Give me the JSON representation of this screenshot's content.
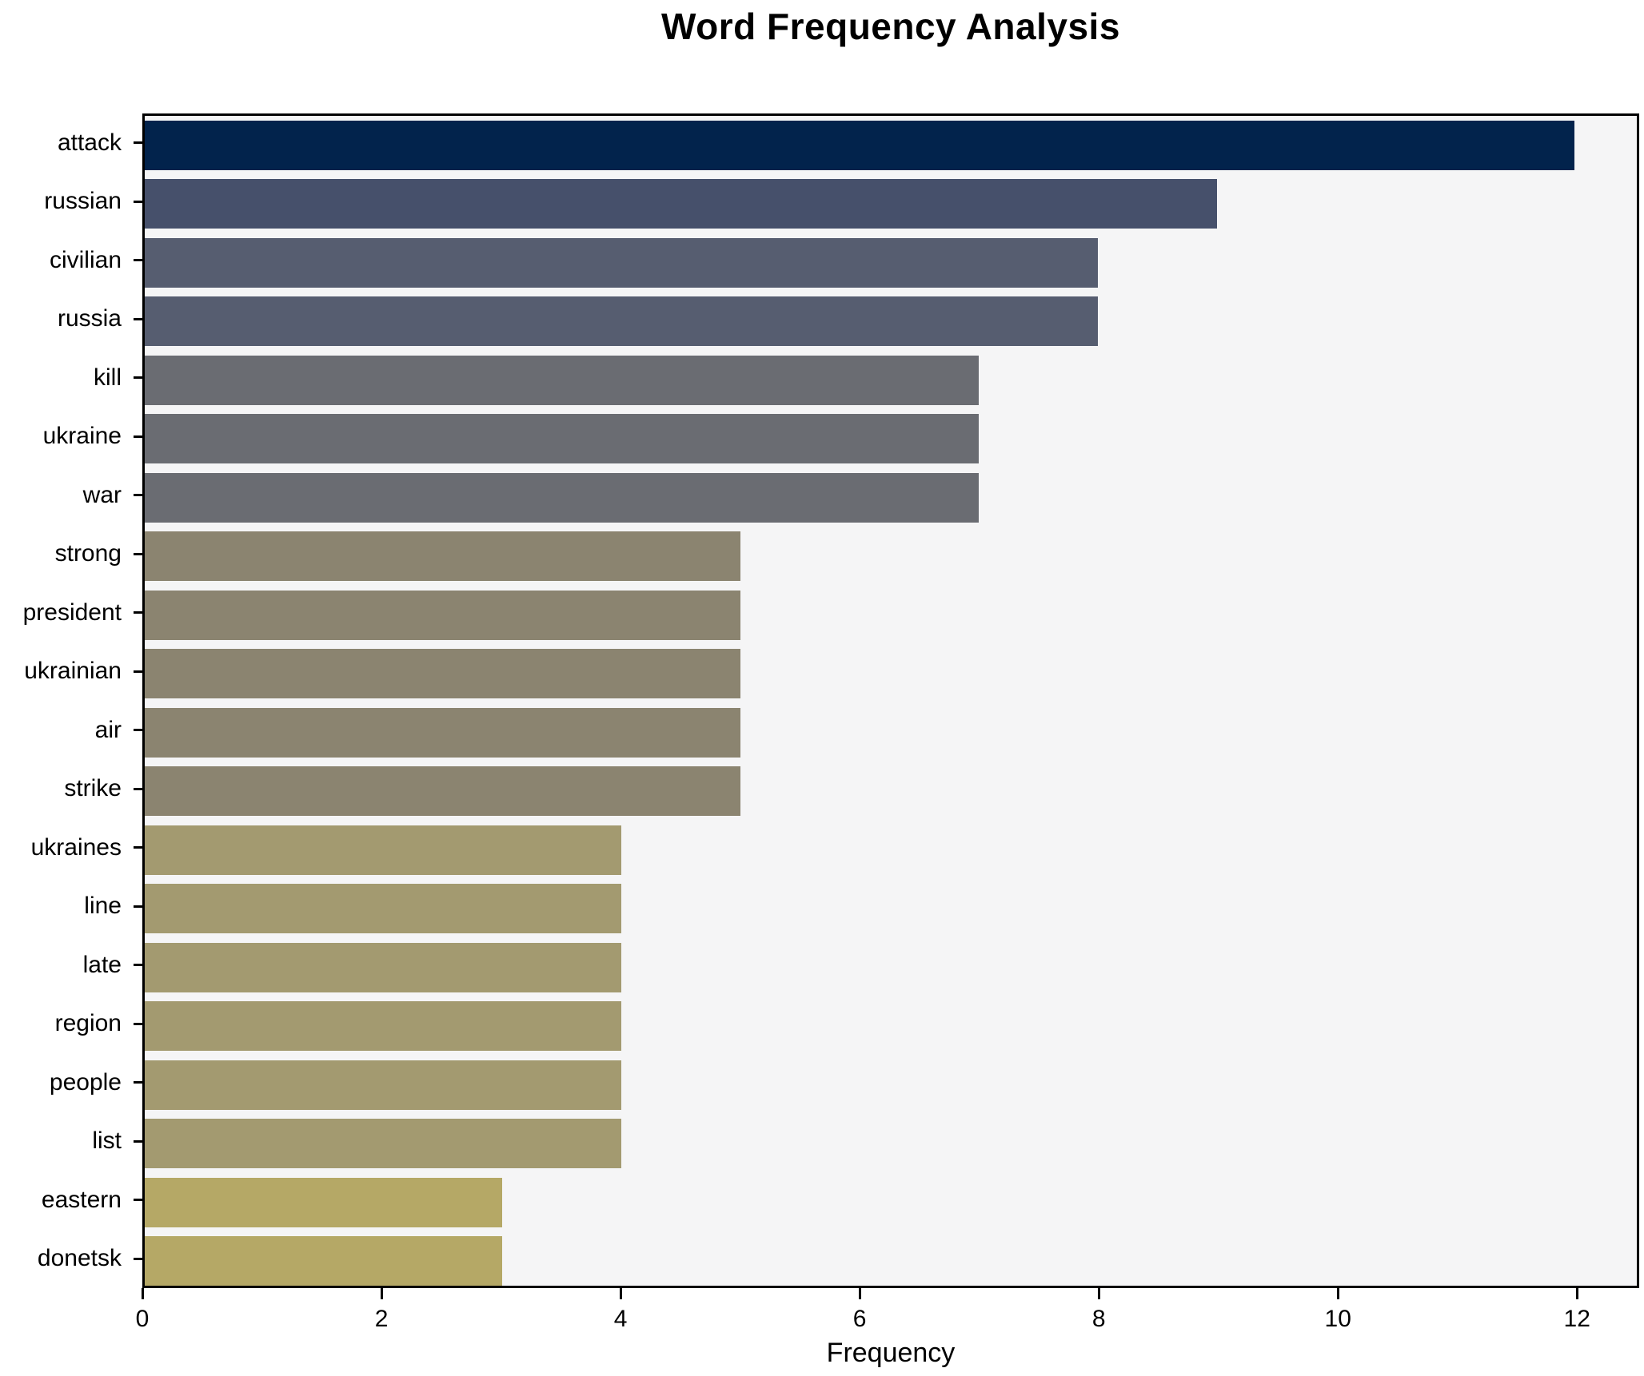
{
  "chart_data": {
    "type": "bar",
    "orientation": "horizontal",
    "title": "Word Frequency Analysis",
    "xlabel": "Frequency",
    "ylabel": "",
    "categories": [
      "attack",
      "russian",
      "civilian",
      "russia",
      "kill",
      "ukraine",
      "war",
      "strong",
      "president",
      "ukrainian",
      "air",
      "strike",
      "ukraines",
      "line",
      "late",
      "region",
      "people",
      "list",
      "eastern",
      "donetsk"
    ],
    "values": [
      12,
      9,
      8,
      8,
      7,
      7,
      7,
      5,
      5,
      5,
      5,
      5,
      4,
      4,
      4,
      4,
      4,
      4,
      3,
      3
    ],
    "bar_colors": [
      "#02234c",
      "#46506b",
      "#565d70",
      "#565d70",
      "#6a6c72",
      "#6a6c72",
      "#6a6c72",
      "#8b8470",
      "#8b8470",
      "#8b8470",
      "#8b8470",
      "#8b8470",
      "#a39a70",
      "#a39a70",
      "#a39a70",
      "#a39a70",
      "#a39a70",
      "#a39a70",
      "#b5a866",
      "#b5a866"
    ],
    "xlim": [
      0,
      12.52
    ],
    "xticks": [
      0,
      2,
      4,
      6,
      8,
      10,
      12
    ],
    "grid": false,
    "legend": false,
    "plot_bg": "#f5f5f6",
    "figure_bg": "#ffffff",
    "spine_color": "#000000"
  }
}
